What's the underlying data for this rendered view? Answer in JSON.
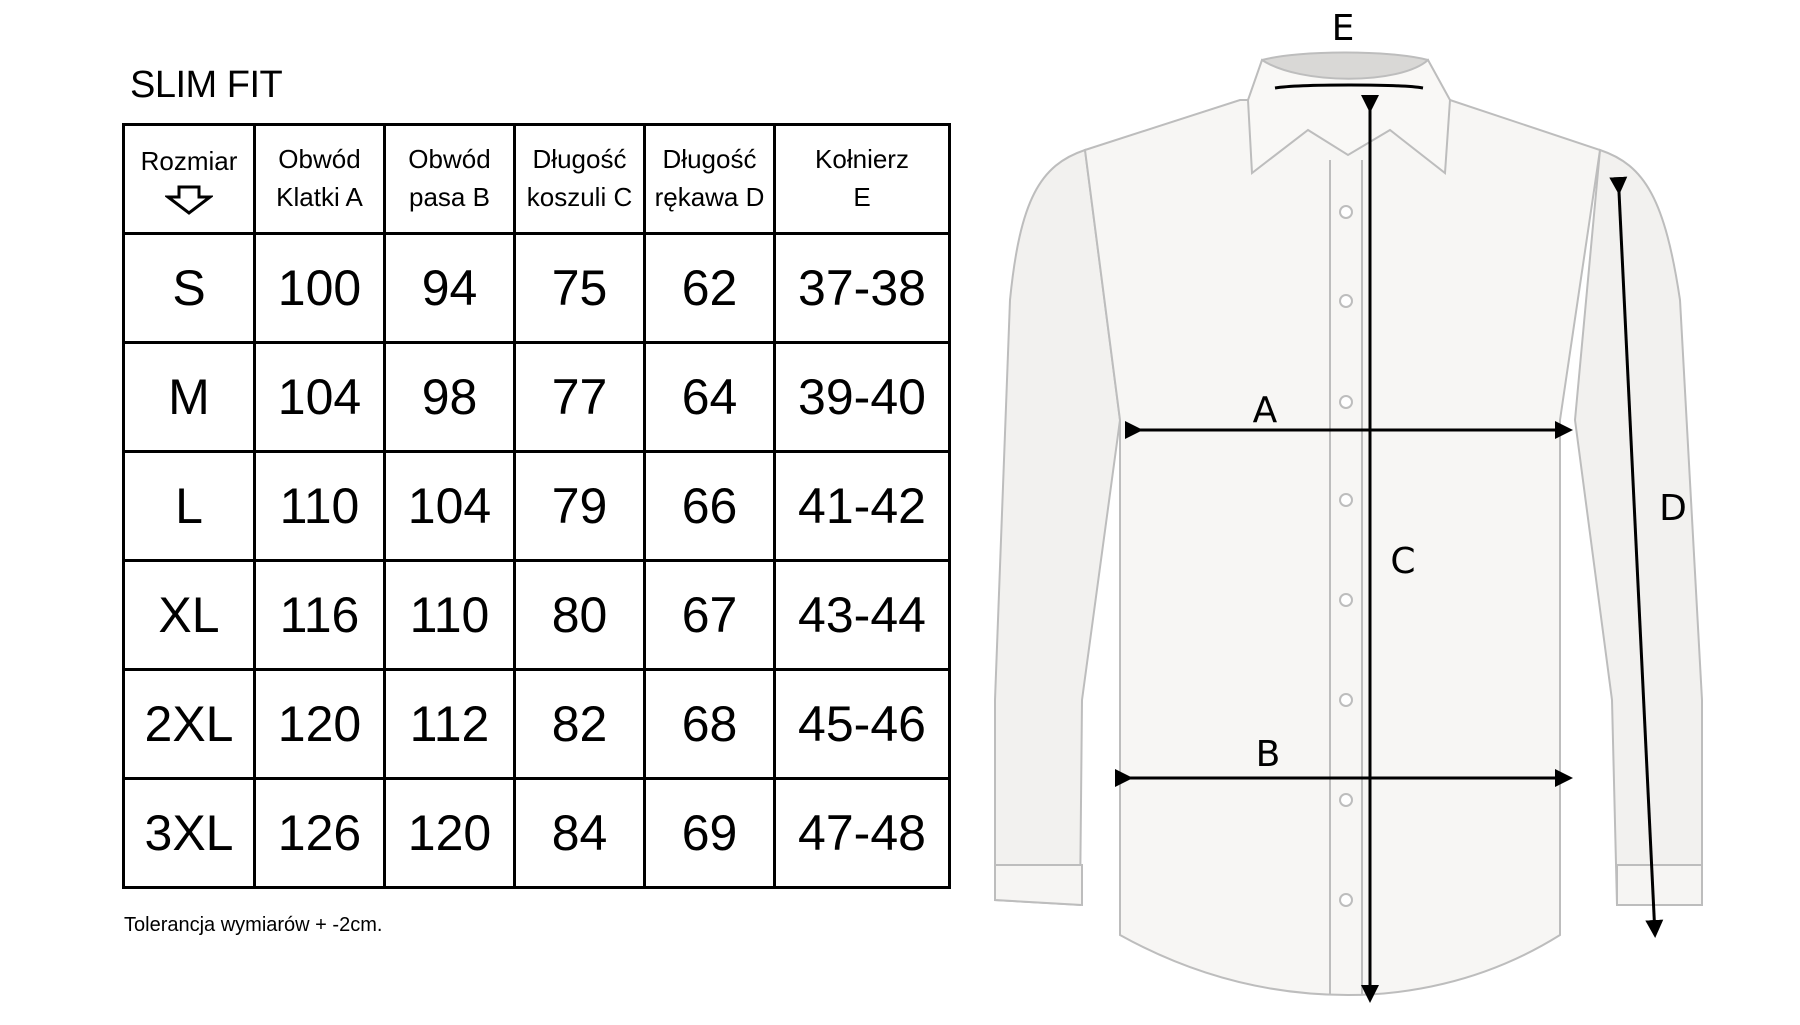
{
  "title": "SLIM FIT",
  "table": {
    "headers": [
      {
        "line1": "Rozmiar",
        "line2": ""
      },
      {
        "line1": "Obwód",
        "line2": "Klatki  A"
      },
      {
        "line1": "Obwód",
        "line2": "pasa  B"
      },
      {
        "line1": "Długość",
        "line2": "koszuli C"
      },
      {
        "line1": "Długość",
        "line2": "rękawa D"
      },
      {
        "line1": "Kołnierz",
        "line2": "E"
      }
    ],
    "rows": [
      [
        "S",
        "100",
        "94",
        "75",
        "62",
        "37-38"
      ],
      [
        "M",
        "104",
        "98",
        "77",
        "64",
        "39-40"
      ],
      [
        "L",
        "110",
        "104",
        "79",
        "66",
        "41-42"
      ],
      [
        "XL",
        "116",
        "110",
        "80",
        "67",
        "43-44"
      ],
      [
        "2XL",
        "120",
        "112",
        "82",
        "68",
        "45-46"
      ],
      [
        "3XL",
        "126",
        "120",
        "84",
        "69",
        "47-48"
      ]
    ]
  },
  "note": "Tolerancja wymiarów + -2cm.",
  "diagram": {
    "labels": {
      "A": "A",
      "B": "B",
      "C": "C",
      "D": "D",
      "E": "E"
    }
  },
  "icons": {
    "rozmiar": "arrow-down-outline-icon"
  }
}
